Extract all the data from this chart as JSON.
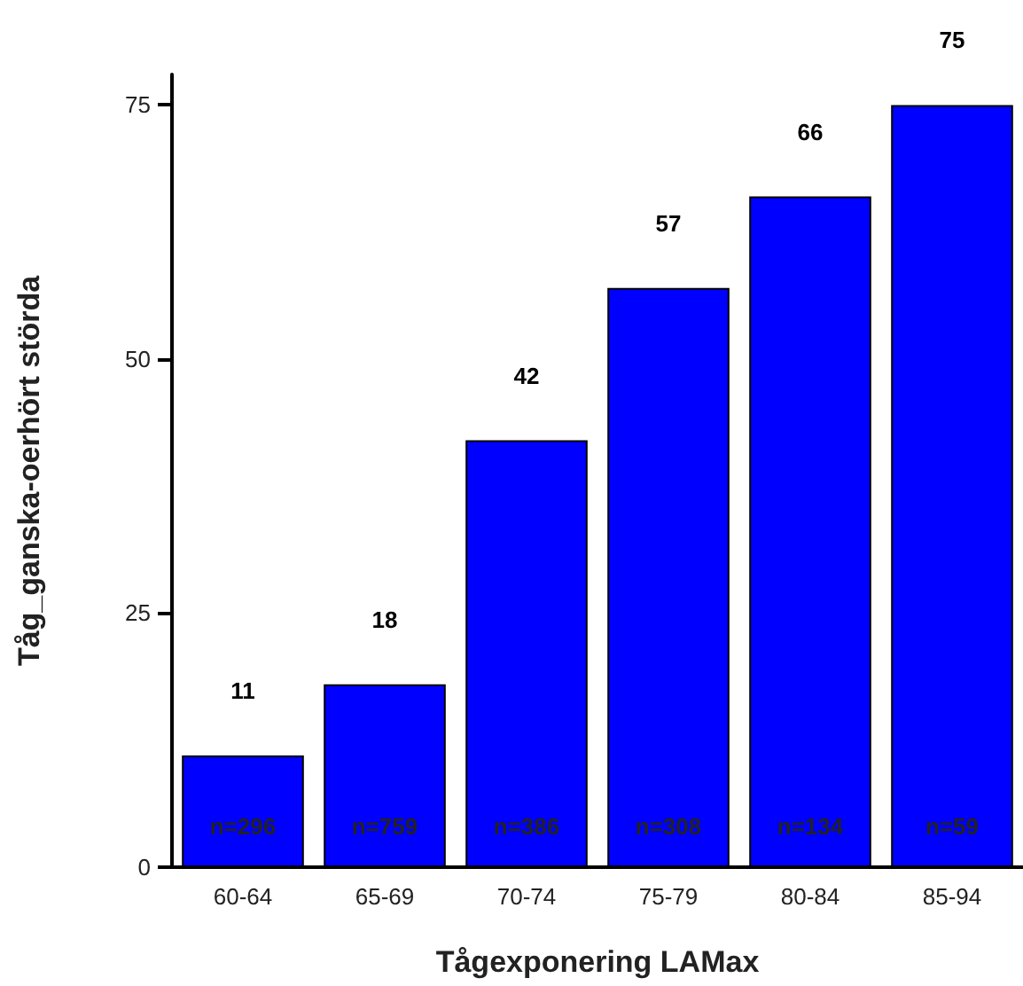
{
  "chart_data": {
    "type": "bar",
    "xlabel": "Tågexponering LAMax",
    "ylabel": "Tåg_ganska-oerhört störda",
    "categories": [
      "60-64",
      "65-69",
      "70-74",
      "75-79",
      "80-84",
      "85-94"
    ],
    "values": [
      11,
      18,
      42,
      57,
      66,
      75
    ],
    "color": "#0000ff",
    "ylim": [
      0,
      78
    ],
    "yticks": [
      0,
      25,
      50,
      75
    ],
    "grid": false,
    "data_labels": true,
    "annotations": [
      "n=296",
      "n=759",
      "n=386",
      "n=308",
      "n=134",
      "n=59"
    ]
  }
}
